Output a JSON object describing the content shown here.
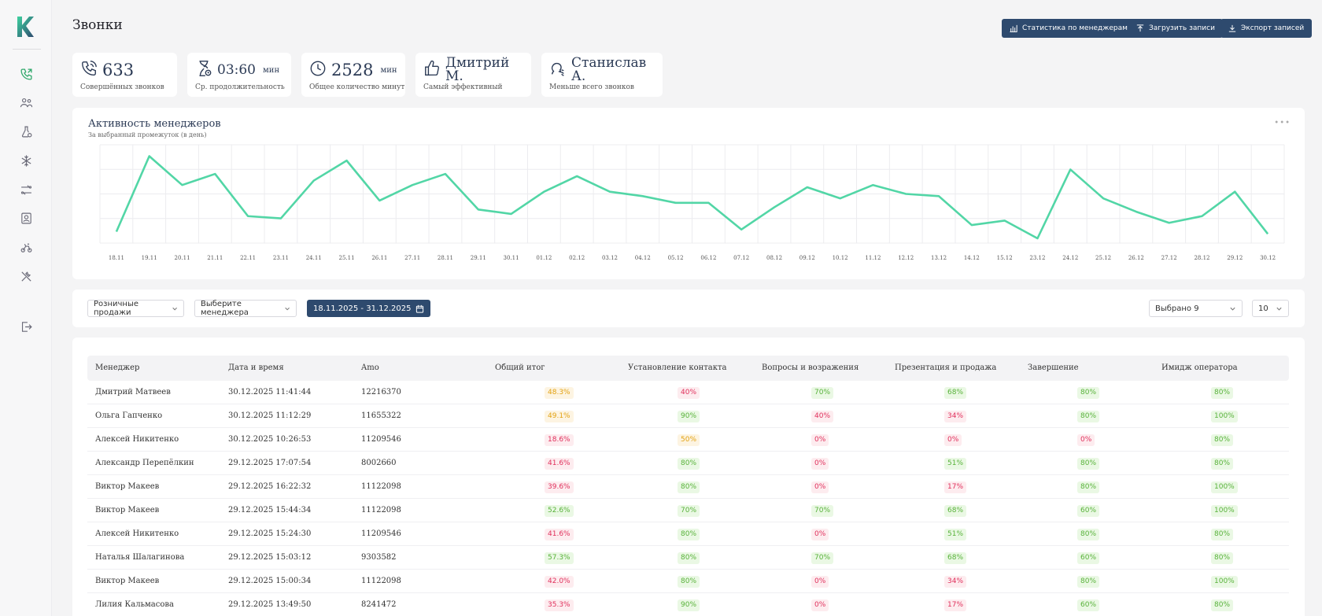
{
  "page": {
    "title": "Звонки"
  },
  "header_buttons": {
    "stats": "Статистика по менеджерам",
    "upload": "Загрузить записи",
    "export": "Экспорт записей"
  },
  "kpis": {
    "calls": {
      "value": "633",
      "label": "Совершённых звонков"
    },
    "avg": {
      "value": "03:60",
      "unit": "мин",
      "label": "Ср. продолжительность"
    },
    "minutes": {
      "value": "2528",
      "unit": "мин",
      "label": "Общее количество минут"
    },
    "best": {
      "value": "Дмитрий М.",
      "label": "Самый эффективный"
    },
    "least": {
      "value": "Станислав А.",
      "label": "Меньше всего звонков"
    }
  },
  "chart_data": {
    "type": "line",
    "title": "Активность менеджеров",
    "subtitle": "За выбранный промежуток (в день)",
    "categories": [
      "18.11",
      "19.11",
      "20.11",
      "21.11",
      "22.11",
      "23.11",
      "24.11",
      "25.11",
      "26.11",
      "27.11",
      "28.11",
      "29.11",
      "30.11",
      "01.12",
      "02.12",
      "03.12",
      "04.12",
      "05.12",
      "06.12",
      "07.12",
      "08.12",
      "09.12",
      "10.12",
      "11.12",
      "12.12",
      "13.12",
      "14.12",
      "15.12",
      "23.12",
      "24.12",
      "25.12",
      "26.12",
      "27.12",
      "28.12",
      "29.12",
      "30.12"
    ],
    "values": [
      3,
      37,
      24,
      29,
      10,
      9,
      26,
      35,
      17,
      24,
      29,
      13,
      11,
      21,
      28,
      21,
      19,
      16,
      16,
      4,
      14,
      23,
      18,
      24,
      20,
      19,
      6,
      8,
      0,
      31,
      18,
      12,
      7,
      10,
      21,
      2
    ],
    "ylim": [
      0,
      40
    ],
    "color": "#52d6a6",
    "grid": true
  },
  "filters": {
    "channel": "Розничные продажи",
    "manager": "Выберите менеджера",
    "date_range": "18.11.2025 - 31.12.2025",
    "selected": "Выбрано 9",
    "page_size": "10"
  },
  "table": {
    "headers": [
      "Менеджер",
      "Дата и время",
      "Amo",
      "Общий итог",
      "Установление контакта",
      "Вопросы и возражения",
      "Презентация и продажа",
      "Завершение",
      "Имидж оператора"
    ],
    "rows": [
      [
        "Дмитрий Матвеев",
        "30.12.2025 11:41:44",
        "12216370",
        "48.3%",
        "40%",
        "70%",
        "68%",
        "80%",
        "80%"
      ],
      [
        "Ольга Гапченко",
        "30.12.2025 11:12:29",
        "11655322",
        "49.1%",
        "90%",
        "40%",
        "34%",
        "80%",
        "100%"
      ],
      [
        "Алексей Никитенко",
        "30.12.2025 10:26:53",
        "11209546",
        "18.6%",
        "50%",
        "0%",
        "0%",
        "0%",
        "80%"
      ],
      [
        "Александр Перепёлкин",
        "29.12.2025 17:07:54",
        "8002660",
        "41.6%",
        "80%",
        "0%",
        "51%",
        "80%",
        "80%"
      ],
      [
        "Виктор Макеев",
        "29.12.2025 16:22:32",
        "11122098",
        "39.6%",
        "80%",
        "0%",
        "17%",
        "80%",
        "100%"
      ],
      [
        "Виктор Макеев",
        "29.12.2025 15:44:34",
        "11122098",
        "52.6%",
        "70%",
        "70%",
        "68%",
        "60%",
        "100%"
      ],
      [
        "Алексей Никитенко",
        "29.12.2025 15:24:30",
        "11209546",
        "41.6%",
        "80%",
        "0%",
        "51%",
        "80%",
        "80%"
      ],
      [
        "Наталья Шалагинова",
        "29.12.2025 15:03:12",
        "9303582",
        "57.3%",
        "80%",
        "70%",
        "68%",
        "60%",
        "80%"
      ],
      [
        "Виктор Макеев",
        "29.12.2025 15:00:34",
        "11122098",
        "42.0%",
        "80%",
        "0%",
        "34%",
        "80%",
        "100%"
      ],
      [
        "Лилия Кальмасова",
        "29.12.2025 13:49:50",
        "8241472",
        "35.3%",
        "90%",
        "0%",
        "17%",
        "60%",
        "80%"
      ]
    ],
    "colors": [
      [
        "o",
        "r",
        "g",
        "g",
        "g",
        "g"
      ],
      [
        "o",
        "g",
        "r",
        "r",
        "g",
        "g"
      ],
      [
        "r",
        "o",
        "r",
        "r",
        "r",
        "g"
      ],
      [
        "r",
        "g",
        "r",
        "g",
        "g",
        "g"
      ],
      [
        "r",
        "g",
        "r",
        "r",
        "g",
        "g"
      ],
      [
        "g",
        "g",
        "g",
        "g",
        "g",
        "g"
      ],
      [
        "r",
        "g",
        "r",
        "g",
        "g",
        "g"
      ],
      [
        "g",
        "g",
        "g",
        "g",
        "g",
        "g"
      ],
      [
        "r",
        "g",
        "r",
        "r",
        "g",
        "g"
      ],
      [
        "r",
        "g",
        "r",
        "r",
        "g",
        "g"
      ]
    ]
  },
  "icons": {
    "sidebar": [
      "phone-icon",
      "users-icon",
      "flask-icon",
      "snowflake-icon",
      "routes-icon",
      "contact-card-icon",
      "bike-icon",
      "tools-icon",
      "logout-icon"
    ]
  }
}
